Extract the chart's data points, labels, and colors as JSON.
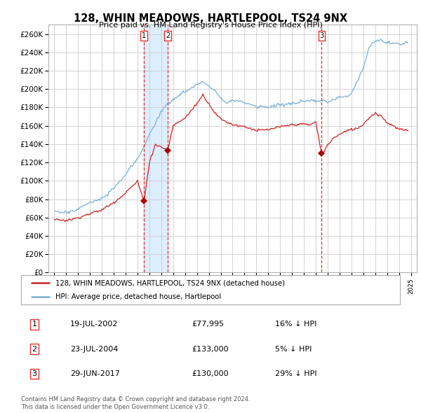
{
  "title": "128, WHIN MEADOWS, HARTLEPOOL, TS24 9NX",
  "subtitle": "Price paid vs. HM Land Registry's House Price Index (HPI)",
  "legend_line1": "128, WHIN MEADOWS, HARTLEPOOL, TS24 9NX (detached house)",
  "legend_line2": "HPI: Average price, detached house, Hartlepool",
  "footer1": "Contains HM Land Registry data © Crown copyright and database right 2024.",
  "footer2": "This data is licensed under the Open Government Licence v3.0.",
  "transactions": [
    {
      "num": 1,
      "date": "19-JUL-2002",
      "price": "£77,995",
      "hpi": "16% ↓ HPI",
      "x_year": 2002.54
    },
    {
      "num": 2,
      "date": "23-JUL-2004",
      "price": "£133,000",
      "hpi": "5% ↓ HPI",
      "x_year": 2004.54
    },
    {
      "num": 3,
      "date": "29-JUN-2017",
      "price": "£130,000",
      "hpi": "29% ↓ HPI",
      "x_year": 2017.49
    }
  ],
  "hpi_color": "#7ab0d4",
  "sold_color": "#cc2222",
  "marker_color": "#aa0000",
  "shade_color": "#ddeeff",
  "ylim": [
    0,
    270000
  ],
  "yticks": [
    0,
    20000,
    40000,
    60000,
    80000,
    100000,
    120000,
    140000,
    160000,
    180000,
    200000,
    220000,
    240000,
    260000
  ],
  "xlim_start": 1994.5,
  "xlim_end": 2025.5,
  "xtick_years": [
    1995,
    1996,
    1997,
    1998,
    1999,
    2000,
    2001,
    2002,
    2003,
    2004,
    2005,
    2006,
    2007,
    2008,
    2009,
    2010,
    2011,
    2012,
    2013,
    2014,
    2015,
    2016,
    2017,
    2018,
    2019,
    2020,
    2021,
    2022,
    2023,
    2024,
    2025
  ]
}
